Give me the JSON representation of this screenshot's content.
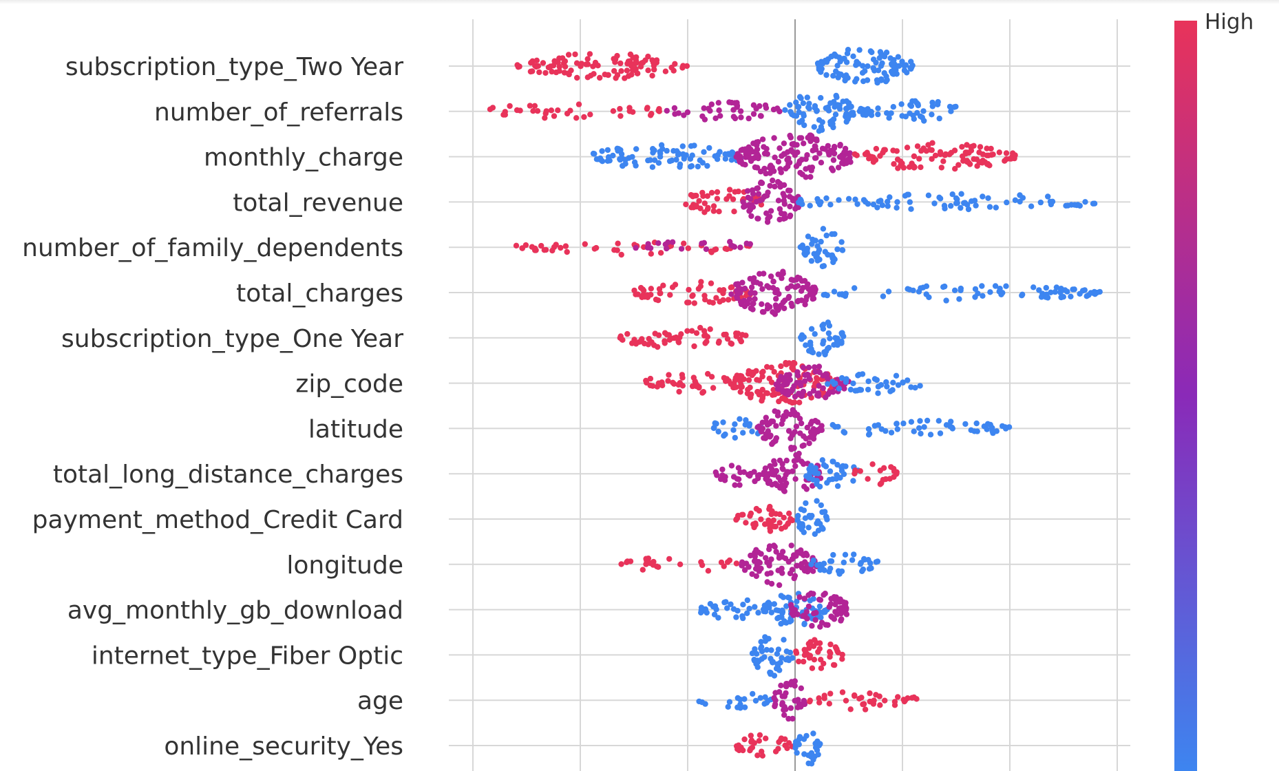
{
  "chart_data": {
    "type": "scatter",
    "subtype": "beeswarm",
    "title": "",
    "xlabel": "",
    "ylabel": "",
    "xlim": [
      -3.0,
      3.2
    ],
    "xticks": [
      -3,
      -2,
      -1,
      0,
      1,
      2,
      3
    ],
    "x_tick_labels_visible": false,
    "grid": true,
    "colorbar": {
      "label_high": "High",
      "colors": [
        "#3d85f0",
        "#e8335a",
        "#b22496"
      ]
    },
    "features": [
      {
        "name": "subscription_type_Two Year",
        "segments": [
          {
            "from": -2.6,
            "to": -1.0,
            "color": "#e8335a",
            "density": 0.45
          },
          {
            "from": 0.2,
            "to": 1.1,
            "color": "#3d85f0",
            "density": 0.75
          }
        ]
      },
      {
        "name": "number_of_referrals",
        "segments": [
          {
            "from": -2.95,
            "to": -1.2,
            "color": "#e8335a",
            "density": 0.15
          },
          {
            "from": -1.2,
            "to": -0.1,
            "color": "#b22496",
            "density": 0.25
          },
          {
            "from": -0.1,
            "to": 0.55,
            "color": "#3d85f0",
            "density": 0.85
          },
          {
            "from": 0.6,
            "to": 1.6,
            "color": "#3d85f0",
            "density": 0.35
          }
        ]
      },
      {
        "name": "monthly_charge",
        "segments": [
          {
            "from": -1.9,
            "to": -0.5,
            "color": "#3d85f0",
            "density": 0.45
          },
          {
            "from": -0.55,
            "to": 0.55,
            "color": "#b22496",
            "density": 1.0
          },
          {
            "from": 0.55,
            "to": 2.05,
            "color": "#e8335a",
            "density": 0.5
          }
        ]
      },
      {
        "name": "total_revenue",
        "segments": [
          {
            "from": -1.05,
            "to": -0.3,
            "color": "#e8335a",
            "density": 0.45
          },
          {
            "from": -0.5,
            "to": 0.05,
            "color": "#b22496",
            "density": 0.95
          },
          {
            "from": 0.0,
            "to": 2.85,
            "color": "#3d85f0",
            "density": 0.2
          }
        ]
      },
      {
        "name": "number_of_family_dependents",
        "segments": [
          {
            "from": -2.6,
            "to": -0.4,
            "color": "#e8335a",
            "density": 0.15
          },
          {
            "from": -1.5,
            "to": -0.3,
            "color": "#b22496",
            "density": 0.12
          },
          {
            "from": 0.05,
            "to": 0.45,
            "color": "#3d85f0",
            "density": 0.8
          }
        ]
      },
      {
        "name": "total_charges",
        "segments": [
          {
            "from": -1.5,
            "to": -0.4,
            "color": "#e8335a",
            "density": 0.35
          },
          {
            "from": -0.6,
            "to": 0.2,
            "color": "#b22496",
            "density": 0.95
          },
          {
            "from": 0.2,
            "to": 2.85,
            "color": "#3d85f0",
            "density": 0.2
          }
        ]
      },
      {
        "name": "subscription_type_One Year",
        "segments": [
          {
            "from": -1.65,
            "to": -0.45,
            "color": "#e8335a",
            "density": 0.35
          },
          {
            "from": 0.05,
            "to": 0.45,
            "color": "#3d85f0",
            "density": 0.75
          }
        ]
      },
      {
        "name": "zip_code",
        "segments": [
          {
            "from": -1.4,
            "to": -0.6,
            "color": "#e8335a",
            "density": 0.35
          },
          {
            "from": -0.6,
            "to": 0.4,
            "color": "#e8335a",
            "density": 0.9
          },
          {
            "from": -0.2,
            "to": 0.5,
            "color": "#b22496",
            "density": 0.7
          },
          {
            "from": 0.3,
            "to": 1.2,
            "color": "#3d85f0",
            "density": 0.3
          }
        ]
      },
      {
        "name": "latitude",
        "segments": [
          {
            "from": -0.8,
            "to": -0.3,
            "color": "#3d85f0",
            "density": 0.3
          },
          {
            "from": -0.35,
            "to": 0.25,
            "color": "#b22496",
            "density": 0.9
          },
          {
            "from": 0.25,
            "to": 2.0,
            "color": "#3d85f0",
            "density": 0.2
          }
        ]
      },
      {
        "name": "total_long_distance_charges",
        "segments": [
          {
            "from": -0.75,
            "to": -0.3,
            "color": "#b22496",
            "density": 0.4
          },
          {
            "from": -0.3,
            "to": 0.25,
            "color": "#b22496",
            "density": 0.9
          },
          {
            "from": 0.1,
            "to": 0.6,
            "color": "#3d85f0",
            "density": 0.6
          },
          {
            "from": 0.55,
            "to": 0.95,
            "color": "#e8335a",
            "density": 0.35
          }
        ]
      },
      {
        "name": "payment_method_Credit Card",
        "segments": [
          {
            "from": -0.55,
            "to": -0.02,
            "color": "#e8335a",
            "density": 0.55
          },
          {
            "from": 0.02,
            "to": 0.3,
            "color": "#3d85f0",
            "density": 0.85
          }
        ]
      },
      {
        "name": "longitude",
        "segments": [
          {
            "from": -1.65,
            "to": -0.5,
            "color": "#e8335a",
            "density": 0.15
          },
          {
            "from": -0.5,
            "to": 0.2,
            "color": "#b22496",
            "density": 0.9
          },
          {
            "from": 0.15,
            "to": 0.8,
            "color": "#3d85f0",
            "density": 0.35
          }
        ]
      },
      {
        "name": "avg_monthly_gb_download",
        "segments": [
          {
            "from": -0.9,
            "to": -0.15,
            "color": "#3d85f0",
            "density": 0.3
          },
          {
            "from": -0.3,
            "to": 0.3,
            "color": "#3d85f0",
            "density": 0.7
          },
          {
            "from": -0.05,
            "to": 0.5,
            "color": "#b22496",
            "density": 0.8
          }
        ]
      },
      {
        "name": "internet_type_Fiber Optic",
        "segments": [
          {
            "from": -0.4,
            "to": -0.02,
            "color": "#3d85f0",
            "density": 0.9
          },
          {
            "from": 0.0,
            "to": 0.45,
            "color": "#e8335a",
            "density": 0.6
          }
        ]
      },
      {
        "name": "age",
        "segments": [
          {
            "from": -0.9,
            "to": -0.2,
            "color": "#3d85f0",
            "density": 0.2
          },
          {
            "from": -0.2,
            "to": 0.1,
            "color": "#b22496",
            "density": 0.9
          },
          {
            "from": 0.1,
            "to": 1.15,
            "color": "#e8335a",
            "density": 0.25
          }
        ]
      },
      {
        "name": "online_security_Yes",
        "segments": [
          {
            "from": -0.55,
            "to": -0.02,
            "color": "#e8335a",
            "density": 0.4
          },
          {
            "from": 0.0,
            "to": 0.25,
            "color": "#3d85f0",
            "density": 0.8
          }
        ]
      }
    ]
  }
}
